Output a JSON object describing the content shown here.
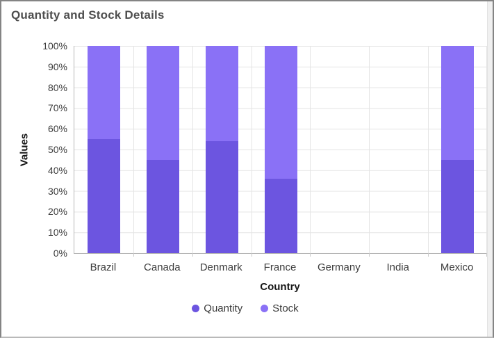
{
  "chart_data": {
    "type": "bar",
    "subtype": "stacked-100",
    "title": "Quantity and Stock Details",
    "xlabel": "Country",
    "ylabel": "Values",
    "categories": [
      "Brazil",
      "Canada",
      "Denmark",
      "France",
      "Germany",
      "India",
      "Mexico"
    ],
    "series": [
      {
        "name": "Quantity",
        "color": "#6c55e0",
        "values_pct": [
          55,
          45,
          54,
          36,
          0,
          0,
          45
        ]
      },
      {
        "name": "Stock",
        "color": "#8a71f6",
        "values_pct": [
          45,
          55,
          46,
          64,
          0,
          0,
          55
        ]
      }
    ],
    "y_ticks": [
      "100%",
      "90%",
      "80%",
      "70%",
      "60%",
      "50%",
      "40%",
      "30%",
      "20%",
      "10%",
      "0%"
    ],
    "ylim": [
      0,
      100
    ],
    "grid": true,
    "legend_position": "bottom",
    "bar_totals_pct": [
      100,
      100,
      100,
      100,
      0,
      0,
      100
    ]
  },
  "colors": {
    "quantity": "#6c55e0",
    "stock": "#8a71f6",
    "gridline": "#e4e4e4",
    "axis_line": "#b6b6b6",
    "title_text": "#4e4e4e",
    "tick_text": "#3d3d3d"
  }
}
